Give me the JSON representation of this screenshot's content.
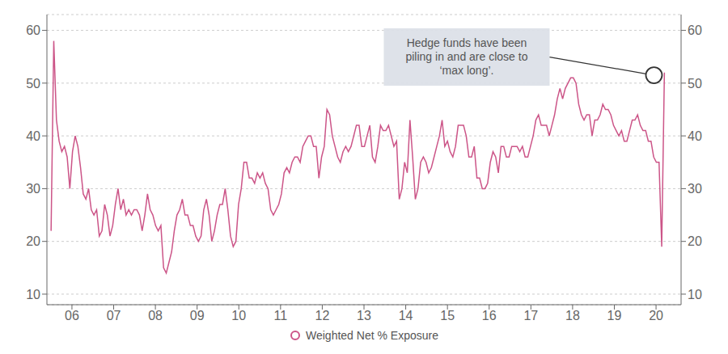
{
  "chart_data": {
    "type": "line",
    "x": [
      2005.5,
      2005.5642,
      2005.6284,
      2005.6926,
      2005.7568,
      2005.821,
      2005.8852,
      2005.9493,
      2006.0135,
      2006.0777,
      2006.1419,
      2006.2061,
      2006.2703,
      2006.3345,
      2006.3987,
      2006.4629,
      2006.5271,
      2006.5913,
      2006.6555,
      2006.7197,
      2006.7838,
      2006.848,
      2006.9122,
      2006.9764,
      2007.0406,
      2007.1048,
      2007.169,
      2007.2332,
      2007.2974,
      2007.3616,
      2007.4258,
      2007.49,
      2007.5541,
      2007.6183,
      2007.6825,
      2007.7467,
      2007.8109,
      2007.8751,
      2007.9393,
      2008.0035,
      2008.0677,
      2008.1319,
      2008.1961,
      2008.2603,
      2008.3245,
      2008.3886,
      2008.4528,
      2008.517,
      2008.5812,
      2008.6454,
      2008.7096,
      2008.7738,
      2008.838,
      2008.9022,
      2008.9664,
      2009.0306,
      2009.0948,
      2009.159,
      2009.2231,
      2009.2873,
      2009.3515,
      2009.4157,
      2009.4799,
      2009.5441,
      2009.6083,
      2009.6725,
      2009.7367,
      2009.8009,
      2009.8651,
      2009.9293,
      2009.9934,
      2010.0576,
      2010.1218,
      2010.186,
      2010.2502,
      2010.3144,
      2010.3786,
      2010.4428,
      2010.507,
      2010.5712,
      2010.6354,
      2010.6996,
      2010.7638,
      2010.8279,
      2010.8921,
      2010.9563,
      2011.0205,
      2011.0847,
      2011.1489,
      2011.2131,
      2011.2773,
      2011.3415,
      2011.4057,
      2011.4699,
      2011.5341,
      2011.5983,
      2011.6624,
      2011.7266,
      2011.7908,
      2011.855,
      2011.9192,
      2011.9834,
      2012.0476,
      2012.1118,
      2012.176,
      2012.2402,
      2012.3044,
      2012.3686,
      2012.4328,
      2012.4969,
      2012.5611,
      2012.6253,
      2012.6895,
      2012.7537,
      2012.8179,
      2012.8821,
      2012.9463,
      2013.0105,
      2013.0747,
      2013.1389,
      2013.2031,
      2013.2672,
      2013.3314,
      2013.3956,
      2013.4598,
      2013.524,
      2013.5882,
      2013.6524,
      2013.7166,
      2013.7808,
      2013.845,
      2013.9092,
      2013.9734,
      2014.0376,
      2014.1017,
      2014.1659,
      2014.2301,
      2014.2943,
      2014.3585,
      2014.4227,
      2014.4869,
      2014.5511,
      2014.6153,
      2014.6795,
      2014.7437,
      2014.8079,
      2014.8721,
      2014.9362,
      2015.0004,
      2015.0646,
      2015.1288,
      2015.193,
      2015.2572,
      2015.3214,
      2015.3856,
      2015.4498,
      2015.514,
      2015.5782,
      2015.6424,
      2015.7066,
      2015.7707,
      2015.8349,
      2015.8991,
      2015.9633,
      2016.0275,
      2016.0917,
      2016.1559,
      2016.2201,
      2016.2843,
      2016.3485,
      2016.4127,
      2016.4769,
      2016.541,
      2016.6052,
      2016.6694,
      2016.7336,
      2016.7978,
      2016.862,
      2016.9262,
      2016.9904,
      2017.0546,
      2017.1188,
      2017.183,
      2017.2472,
      2017.3114,
      2017.3755,
      2017.4397,
      2017.5039,
      2017.5681,
      2017.6323,
      2017.6965,
      2017.7607,
      2017.8249,
      2017.8891,
      2017.9533,
      2018.0175,
      2018.0817,
      2018.1459,
      2018.21,
      2018.2742,
      2018.3384,
      2018.4026,
      2018.4668,
      2018.531,
      2018.5952,
      2018.6594,
      2018.7236,
      2018.7878,
      2018.852,
      2018.9162,
      2018.9803,
      2019.0445,
      2019.1087,
      2019.1729,
      2019.2371,
      2019.3013,
      2019.3655,
      2019.4297,
      2019.4939,
      2019.5581,
      2019.6223,
      2019.6865,
      2019.7507,
      2019.8148,
      2019.879,
      2019.9432,
      2020.0074,
      2020.0716,
      2020.1358,
      2020.2
    ],
    "series": [
      {
        "name": "Weighted Net % Exposure",
        "color": "#cc5588",
        "values": [
          22,
          58,
          43,
          39,
          37,
          38,
          36,
          30,
          37,
          40,
          38,
          34,
          29,
          28,
          30,
          26,
          25,
          26,
          21,
          22,
          27,
          25,
          21,
          23,
          27,
          30,
          26,
          28,
          25,
          26,
          25,
          26,
          26,
          25,
          22,
          25,
          29,
          26,
          25,
          23,
          22,
          23,
          15,
          14,
          16,
          18,
          22,
          25,
          26,
          28,
          25,
          25,
          23,
          23,
          21,
          20,
          21,
          26,
          28,
          25,
          20,
          22,
          25,
          27,
          27,
          30,
          26,
          21,
          19,
          20,
          27,
          30,
          35,
          35,
          32,
          32,
          31,
          33,
          32,
          33,
          31,
          30,
          26,
          25,
          26,
          27,
          29,
          33,
          34,
          33,
          35,
          36,
          36,
          35,
          38,
          39,
          40,
          40,
          38,
          38,
          32,
          36,
          38,
          45,
          44,
          40,
          38,
          36,
          35,
          37,
          38,
          37,
          38,
          40,
          42,
          42,
          38,
          38,
          40,
          42,
          36,
          35,
          38,
          42,
          41,
          41,
          42,
          40,
          38,
          39,
          28,
          30,
          35,
          33,
          43,
          36,
          28,
          30,
          35,
          36,
          35,
          33,
          34,
          36,
          38,
          40,
          43,
          38,
          39,
          37,
          36,
          38,
          42,
          42,
          42,
          40,
          36,
          36,
          38,
          32,
          32,
          30,
          30,
          31,
          35,
          37,
          36,
          33,
          38,
          38,
          36,
          36,
          38,
          38,
          38,
          37,
          38,
          36,
          36,
          38,
          40,
          43,
          44,
          42,
          42,
          42,
          40,
          42,
          44,
          47,
          49,
          47,
          49,
          50,
          51,
          51,
          50,
          46,
          44,
          43,
          44,
          44,
          40,
          43,
          43,
          44,
          46,
          45,
          45,
          44,
          42,
          41,
          40,
          41,
          39,
          39,
          41,
          43,
          43,
          44,
          42,
          41,
          41,
          39,
          39,
          36,
          35,
          35,
          19,
          52
        ]
      }
    ],
    "xlim": [
      2005.4,
      2020.6
    ],
    "xticks": [
      {
        "value": 2006,
        "label": "06"
      },
      {
        "value": 2007,
        "label": "07"
      },
      {
        "value": 2008,
        "label": "08"
      },
      {
        "value": 2009,
        "label": "09"
      },
      {
        "value": 2010,
        "label": "10"
      },
      {
        "value": 2011,
        "label": "11"
      },
      {
        "value": 2012,
        "label": "12"
      },
      {
        "value": 2013,
        "label": "13"
      },
      {
        "value": 2014,
        "label": "14"
      },
      {
        "value": 2015,
        "label": "15"
      },
      {
        "value": 2016,
        "label": "16"
      },
      {
        "value": 2017,
        "label": "17"
      },
      {
        "value": 2018,
        "label": "18"
      },
      {
        "value": 2019,
        "label": "19"
      },
      {
        "value": 2020,
        "label": "20"
      }
    ],
    "ylim": [
      8,
      63
    ],
    "yticks": [
      10,
      20,
      30,
      40,
      50,
      60
    ],
    "y2lim": [
      8,
      63
    ],
    "y2ticks": [
      10,
      20,
      30,
      40,
      50,
      60
    ],
    "grid": true,
    "legend": "bottom",
    "annotations": [
      {
        "text": "Hedge funds have been\npiling in and are close to\n‘max long’.",
        "x": 2019.95,
        "y": 51.5
      }
    ]
  }
}
